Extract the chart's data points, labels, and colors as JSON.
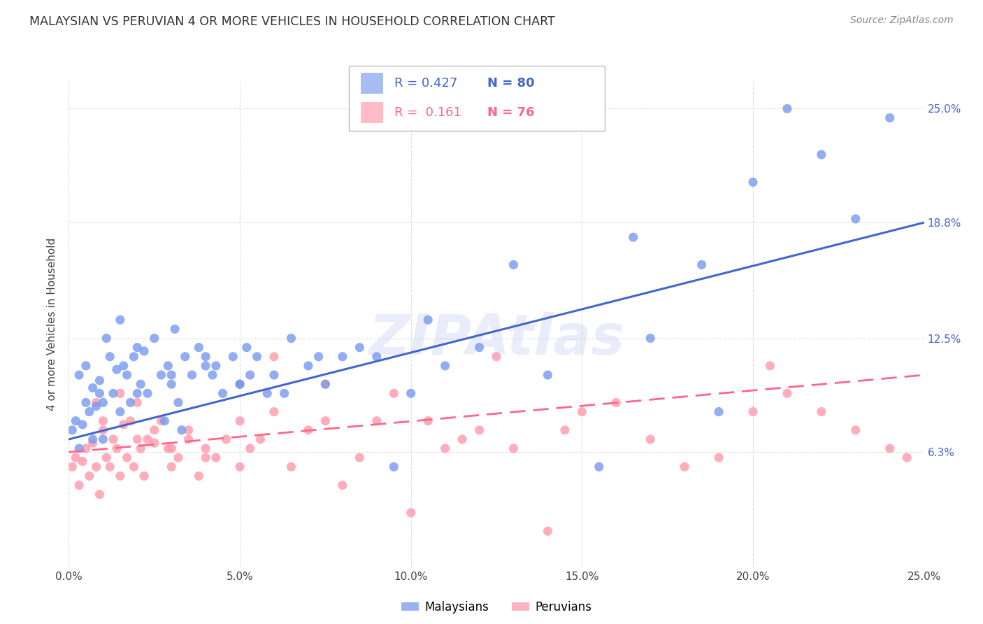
{
  "title": "MALAYSIAN VS PERUVIAN 4 OR MORE VEHICLES IN HOUSEHOLD CORRELATION CHART",
  "source": "Source: ZipAtlas.com",
  "ylabel": "4 or more Vehicles in Household",
  "malaysian_color": "#7799EE",
  "peruvian_color": "#FF99AA",
  "malaysian_line_color": "#4466CC",
  "peruvian_line_color": "#FF6688",
  "legend_label_malaysian": "Malaysians",
  "legend_label_peruvian": "Peruvians",
  "watermark": "ZIPAtlas",
  "background_color": "#ffffff",
  "grid_color": "#dddddd",
  "xmin": 0.0,
  "xmax": 25.0,
  "ymin": 0.0,
  "ymax": 26.5,
  "malaysian_R": 0.427,
  "malaysian_N": 80,
  "peruvian_R": 0.161,
  "peruvian_N": 76,
  "malaysian_scatter_x": [
    0.1,
    0.2,
    0.3,
    0.4,
    0.5,
    0.6,
    0.7,
    0.8,
    0.9,
    1.0,
    0.3,
    0.5,
    0.7,
    0.9,
    1.1,
    1.2,
    1.3,
    1.4,
    1.5,
    1.6,
    1.7,
    1.8,
    1.9,
    2.0,
    2.1,
    2.2,
    2.3,
    2.5,
    2.7,
    2.9,
    3.0,
    3.1,
    3.2,
    3.4,
    3.6,
    3.8,
    4.0,
    4.2,
    4.5,
    4.8,
    5.0,
    5.2,
    5.5,
    5.8,
    6.0,
    6.5,
    7.0,
    7.5,
    8.0,
    8.5,
    9.0,
    9.5,
    10.0,
    10.5,
    11.0,
    12.0,
    13.0,
    14.0,
    15.5,
    16.5,
    17.0,
    18.5,
    19.0,
    20.0,
    21.0,
    22.0,
    23.0,
    24.0,
    2.8,
    3.3,
    4.3,
    5.3,
    6.3,
    7.3,
    1.0,
    1.5,
    2.0,
    3.0,
    4.0,
    5.0
  ],
  "malaysian_scatter_y": [
    7.5,
    8.0,
    6.5,
    7.8,
    9.0,
    8.5,
    7.0,
    8.8,
    9.5,
    9.0,
    10.5,
    11.0,
    9.8,
    10.2,
    12.5,
    11.5,
    9.5,
    10.8,
    13.5,
    11.0,
    10.5,
    9.0,
    11.5,
    12.0,
    10.0,
    11.8,
    9.5,
    12.5,
    10.5,
    11.0,
    10.0,
    13.0,
    9.0,
    11.5,
    10.5,
    12.0,
    11.0,
    10.5,
    9.5,
    11.5,
    10.0,
    12.0,
    11.5,
    9.5,
    10.5,
    12.5,
    11.0,
    10.0,
    11.5,
    12.0,
    11.5,
    5.5,
    9.5,
    13.5,
    11.0,
    12.0,
    16.5,
    10.5,
    5.5,
    18.0,
    12.5,
    16.5,
    8.5,
    21.0,
    25.0,
    22.5,
    19.0,
    24.5,
    8.0,
    7.5,
    11.0,
    10.5,
    9.5,
    11.5,
    7.0,
    8.5,
    9.5,
    10.5,
    11.5,
    10.0
  ],
  "peruvian_scatter_x": [
    0.1,
    0.2,
    0.3,
    0.4,
    0.5,
    0.6,
    0.7,
    0.8,
    0.9,
    1.0,
    1.1,
    1.2,
    1.3,
    1.4,
    1.5,
    1.6,
    1.7,
    1.8,
    1.9,
    2.0,
    2.1,
    2.2,
    2.3,
    2.5,
    2.7,
    2.9,
    3.0,
    3.2,
    3.5,
    3.8,
    4.0,
    4.3,
    4.6,
    5.0,
    5.3,
    5.6,
    6.0,
    6.5,
    7.0,
    7.5,
    8.0,
    8.5,
    9.0,
    9.5,
    10.0,
    11.0,
    12.0,
    12.5,
    13.0,
    14.0,
    14.5,
    15.0,
    16.0,
    17.0,
    18.0,
    19.0,
    20.0,
    21.0,
    22.0,
    23.0,
    0.8,
    1.0,
    1.5,
    2.0,
    2.5,
    3.0,
    3.5,
    4.0,
    5.0,
    6.0,
    7.5,
    10.5,
    11.5,
    20.5,
    24.0,
    24.5
  ],
  "peruvian_scatter_y": [
    5.5,
    6.0,
    4.5,
    5.8,
    6.5,
    5.0,
    6.8,
    5.5,
    4.0,
    7.5,
    6.0,
    5.5,
    7.0,
    6.5,
    5.0,
    7.8,
    6.0,
    8.0,
    5.5,
    7.0,
    6.5,
    5.0,
    7.0,
    6.8,
    8.0,
    6.5,
    5.5,
    6.0,
    7.5,
    5.0,
    6.5,
    6.0,
    7.0,
    5.5,
    6.5,
    7.0,
    8.5,
    5.5,
    7.5,
    8.0,
    4.5,
    6.0,
    8.0,
    9.5,
    3.0,
    6.5,
    7.5,
    11.5,
    6.5,
    2.0,
    7.5,
    8.5,
    9.0,
    7.0,
    5.5,
    6.0,
    8.5,
    9.5,
    8.5,
    7.5,
    9.0,
    8.0,
    9.5,
    9.0,
    7.5,
    6.5,
    7.0,
    6.0,
    8.0,
    11.5,
    10.0,
    8.0,
    7.0,
    11.0,
    6.5,
    6.0
  ],
  "ytick_positions": [
    0.0,
    6.3,
    12.5,
    18.8,
    25.0
  ],
  "ytick_labels": [
    "",
    "6.3%",
    "12.5%",
    "18.8%",
    "25.0%"
  ],
  "xtick_positions": [
    0.0,
    5.0,
    10.0,
    15.0,
    20.0,
    25.0
  ],
  "xtick_labels": [
    "0.0%",
    "5.0%",
    "10.0%",
    "15.0%",
    "20.0%",
    "25.0%"
  ]
}
